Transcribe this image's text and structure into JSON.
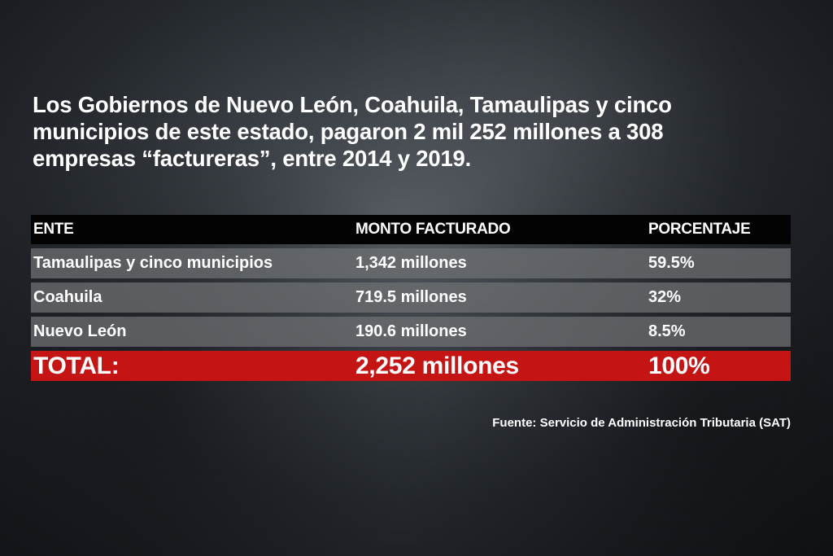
{
  "headline": {
    "lines": [
      "Los Gobiernos de Nuevo León, Coahuila, Tamaulipas y cinco",
      "municipios de este estado, pagaron 2 mil 252 millones a 308",
      "empresas “factureras”, entre 2014 y 2019."
    ]
  },
  "table": {
    "headers": [
      "ENTE",
      "MONTO FACTURADO",
      "PORCENTAJE"
    ],
    "rows": [
      [
        "Tamaulipas y cinco municipios",
        "1,342 millones",
        "59.5%"
      ],
      [
        "Coahuila",
        "719.5 millones",
        "32%"
      ],
      [
        "Nuevo León",
        "190.6 millones",
        "8.5%"
      ]
    ],
    "total": [
      "TOTAL:",
      "2,252 millones",
      "100%"
    ]
  },
  "source": "Fuente: Servicio de Administración Tributaria (SAT)",
  "colors": {
    "header_bg": "#030303",
    "row_bg": "#6e7073",
    "total_bg": "#c41414",
    "text": "#ffffff"
  }
}
